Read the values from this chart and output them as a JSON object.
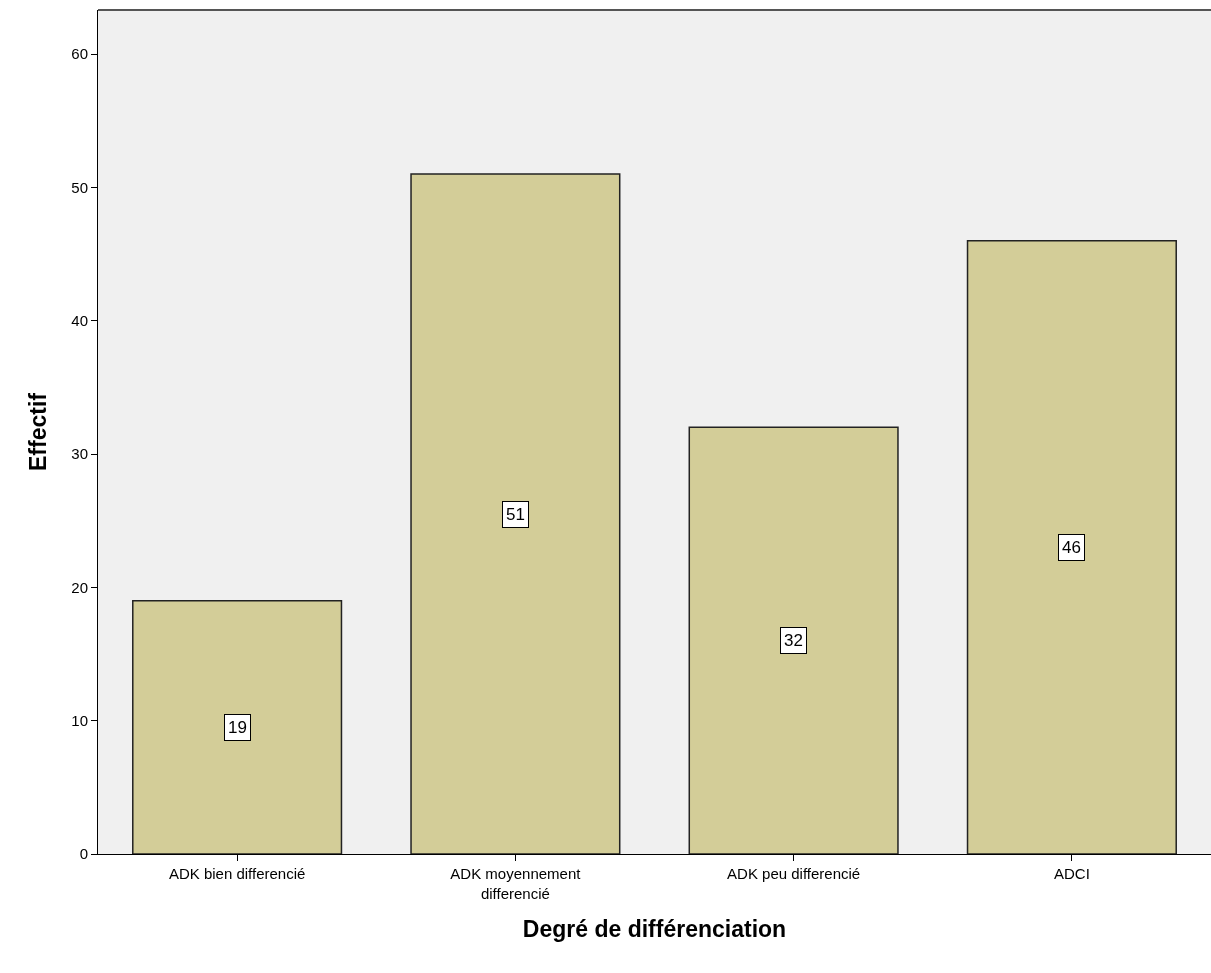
{
  "chart_data": {
    "type": "bar",
    "xlabel": "Degré de différenciation",
    "ylabel": "Effectif",
    "categories": [
      "ADK bien differencié",
      "ADK moyennement\ndifferencié",
      "ADK peu differencié",
      "ADCI"
    ],
    "values": [
      19,
      51,
      32,
      46
    ],
    "color": "#d3cd98",
    "ylim": [
      0,
      63.3
    ],
    "yticks": [
      0,
      10,
      20,
      30,
      40,
      50,
      60
    ],
    "grid": false,
    "data_labels": true,
    "legend": false
  }
}
